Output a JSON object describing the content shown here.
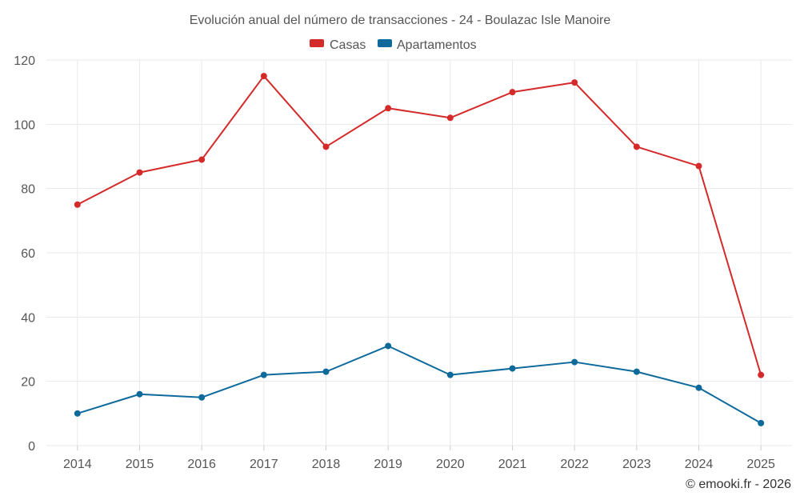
{
  "chart_data": {
    "type": "line",
    "title": "Evolución anual del número de transacciones - 24 - Boulazac Isle Manoire",
    "categories": [
      "2014",
      "2015",
      "2016",
      "2017",
      "2018",
      "2019",
      "2020",
      "2021",
      "2022",
      "2023",
      "2024",
      "2025"
    ],
    "series": [
      {
        "name": "Casas",
        "color": "#d42a2a",
        "values": [
          75,
          85,
          89,
          115,
          93,
          105,
          102,
          110,
          113,
          93,
          87,
          22
        ]
      },
      {
        "name": "Apartamentos",
        "color": "#0f6a9c",
        "values": [
          10,
          16,
          15,
          22,
          23,
          31,
          22,
          24,
          26,
          23,
          18,
          7
        ]
      }
    ],
    "yticks": [
      0,
      20,
      40,
      60,
      80,
      100,
      120
    ],
    "ylim": [
      0,
      120
    ],
    "xlabel": "",
    "ylabel": "",
    "grid": true,
    "legend": "top-center"
  },
  "credit": "© emooki.fr - 2026"
}
